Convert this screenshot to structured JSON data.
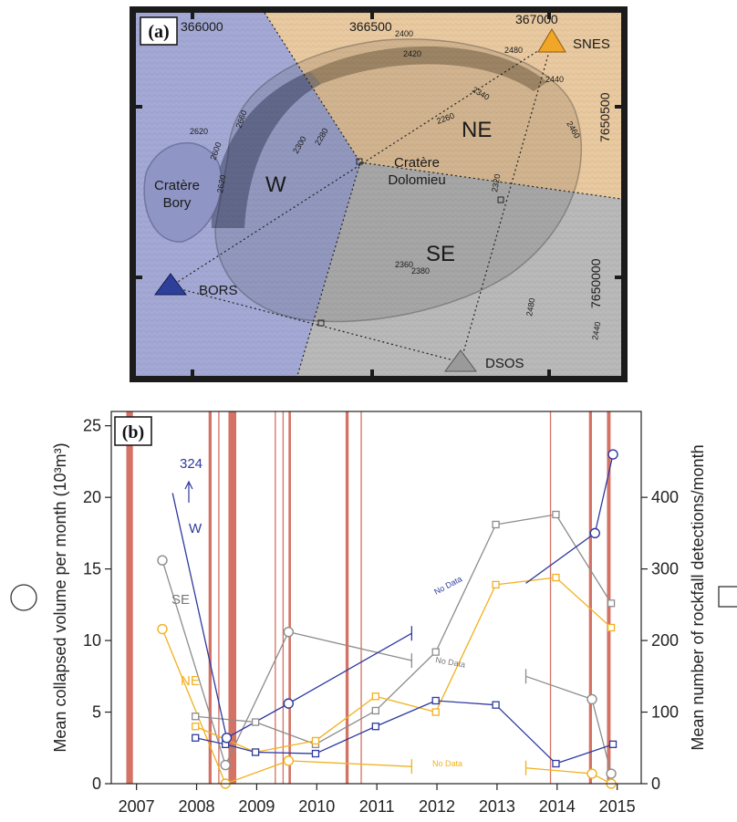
{
  "panel_a": {
    "label": "(a)",
    "coords": {
      "x1": "366000",
      "x2": "366500",
      "x3": "367000",
      "y1": "7650500",
      "y2": "7650000"
    },
    "sectors": {
      "w": "W",
      "ne": "NE",
      "se": "SE"
    },
    "craters": {
      "bory_1": "Cratère",
      "bory_2": "Bory",
      "dolomieu_1": "Cratère",
      "dolomieu_2": "Dolomieu"
    },
    "stations": {
      "snes": "SNES",
      "bors": "BORS",
      "dsos": "DSOS"
    },
    "contours": [
      "2400",
      "2420",
      "2480",
      "2440",
      "2340",
      "2260",
      "2460",
      "2620",
      "2600",
      "2660",
      "2620",
      "2300",
      "2280",
      "2320",
      "2360",
      "2380",
      "2480",
      "2440"
    ],
    "colors": {
      "w": "#a3a9d4",
      "ne": "#e9c9a0",
      "se": "#b9b9b9",
      "snes": "#f2a628",
      "bors": "#2e3f9a",
      "dsos": "#9a9a9a"
    }
  },
  "chart_data": {
    "type": "line",
    "panel_label": "(b)",
    "x_ticks": [
      "2007",
      "2008",
      "2009",
      "2010",
      "2011",
      "2012",
      "2013",
      "2014",
      "2015"
    ],
    "xlim": [
      2006.6,
      2015.42
    ],
    "ylim_left": [
      0,
      26
    ],
    "ylim_right": [
      0,
      520
    ],
    "y_ticks_left": [
      "0",
      "5",
      "10",
      "15",
      "20",
      "25"
    ],
    "y_ticks_right": [
      "0",
      "100",
      "200",
      "300",
      "400"
    ],
    "ylabel_left": "Mean collapsed volume per month (10³m³)",
    "ylabel_right": "Mean number of rockfall detections/month",
    "legend_circle_symbol": "circle",
    "legend_square_symbol": "square",
    "series_labels": {
      "w": "W",
      "se": "SE",
      "ne": "NE",
      "w_outlier": "324"
    },
    "colors": {
      "w": "#2e3a9e",
      "se": "#8c8c8c",
      "ne": "#f2b01e",
      "eruption": "#cc5a4a"
    },
    "no_data_labels": {
      "w": "No Data",
      "se": "No Data",
      "ne": "No Data"
    },
    "eruptions": [
      {
        "x": 2006.85,
        "w": 0.11
      },
      {
        "x": 2008.22,
        "w": 0.05
      },
      {
        "x": 2008.38,
        "w": 0.02
      },
      {
        "x": 2008.55,
        "w": 0.13
      },
      {
        "x": 2009.32,
        "w": 0.02
      },
      {
        "x": 2009.45,
        "w": 0.02
      },
      {
        "x": 2009.55,
        "w": 0.04
      },
      {
        "x": 2010.5,
        "w": 0.05
      },
      {
        "x": 2010.75,
        "w": 0.02
      },
      {
        "x": 2013.9,
        "w": 0.02
      },
      {
        "x": 2014.55,
        "w": 0.05
      },
      {
        "x": 2014.85,
        "w": 0.06
      }
    ],
    "volume_circles": {
      "w": [
        {
          "x": 2008.52,
          "y": 3.2
        },
        {
          "x": 2009.55,
          "y": 5.6
        },
        {
          "x": 2014.65,
          "y": 17.5
        },
        {
          "x": 2014.95,
          "y": 23
        }
      ],
      "se": [
        {
          "x": 2007.45,
          "y": 15.6
        },
        {
          "x": 2008.5,
          "y": 1.3
        },
        {
          "x": 2009.55,
          "y": 10.6
        },
        {
          "x": 2014.6,
          "y": 5.9
        },
        {
          "x": 2014.92,
          "y": 0.7
        }
      ],
      "ne": [
        {
          "x": 2007.45,
          "y": 10.8
        },
        {
          "x": 2008.5,
          "y": 0
        },
        {
          "x": 2009.55,
          "y": 1.6
        },
        {
          "x": 2014.6,
          "y": 0.7
        },
        {
          "x": 2014.92,
          "y": 0
        }
      ]
    },
    "volume_segments": {
      "w": [
        {
          "x0": 2008.52,
          "y0": 3.2,
          "x1": 2009.55,
          "y1": 5.6
        },
        {
          "x0": 2009.55,
          "y0": 5.6,
          "x1": 2011.6,
          "y1": 10.5
        },
        {
          "x0": 2013.5,
          "y0": 14.0,
          "x1": 2014.65,
          "y1": 17.5
        },
        {
          "x0": 2014.65,
          "y0": 17.5,
          "x1": 2014.95,
          "y1": 23
        }
      ],
      "se": [
        {
          "x0": 2007.45,
          "y0": 15.6,
          "x1": 2008.5,
          "y1": 1.3
        },
        {
          "x0": 2008.5,
          "y0": 1.3,
          "x1": 2009.55,
          "y1": 10.6
        },
        {
          "x0": 2009.55,
          "y0": 10.6,
          "x1": 2011.6,
          "y1": 8.6
        },
        {
          "x0": 2013.5,
          "y0": 7.5,
          "x1": 2014.6,
          "y1": 5.9
        },
        {
          "x0": 2014.6,
          "y0": 5.9,
          "x1": 2014.92,
          "y1": 0.7
        }
      ],
      "ne": [
        {
          "x0": 2007.45,
          "y0": 10.8,
          "x1": 2008.5,
          "y1": 0
        },
        {
          "x0": 2008.5,
          "y0": 0,
          "x1": 2009.55,
          "y1": 1.6
        },
        {
          "x0": 2009.55,
          "y0": 1.6,
          "x1": 2011.6,
          "y1": 1.2
        },
        {
          "x0": 2013.5,
          "y0": 1.1,
          "x1": 2014.6,
          "y1": 0.7
        },
        {
          "x0": 2014.6,
          "y0": 0.7,
          "x1": 2014.92,
          "y1": 0
        }
      ]
    },
    "gap_ends": [
      {
        "series": "w",
        "x": 2011.6,
        "y": 10.5
      },
      {
        "series": "se",
        "x": 2011.6,
        "y": 8.6
      },
      {
        "series": "se",
        "x": 2013.5,
        "y": 7.5
      },
      {
        "series": "ne",
        "x": 2011.6,
        "y": 1.2
      },
      {
        "series": "ne",
        "x": 2013.5,
        "y": 1.1
      }
    ],
    "w_outlier_segment": {
      "x0": 2007.62,
      "y0": 20.3,
      "x1": 2008.52,
      "y1": 3.2
    },
    "detection_squares": {
      "w": [
        {
          "x": 2008.0,
          "y": 64
        },
        {
          "x": 2008.5,
          "y": 55
        },
        {
          "x": 2009.0,
          "y": 44
        },
        {
          "x": 2010.0,
          "y": 42
        },
        {
          "x": 2011.0,
          "y": 80
        },
        {
          "x": 2012.0,
          "y": 116
        },
        {
          "x": 2013.0,
          "y": 110
        },
        {
          "x": 2014.0,
          "y": 28
        },
        {
          "x": 2014.95,
          "y": 55
        }
      ],
      "se": [
        {
          "x": 2008.0,
          "y": 94
        },
        {
          "x": 2009.0,
          "y": 86
        },
        {
          "x": 2010.0,
          "y": 55
        },
        {
          "x": 2011.0,
          "y": 102
        },
        {
          "x": 2012.0,
          "y": 184
        },
        {
          "x": 2013.0,
          "y": 362
        },
        {
          "x": 2014.0,
          "y": 376
        },
        {
          "x": 2014.92,
          "y": 252
        }
      ],
      "ne": [
        {
          "x": 2008.0,
          "y": 80
        },
        {
          "x": 2009.0,
          "y": 44
        },
        {
          "x": 2010.0,
          "y": 60
        },
        {
          "x": 2011.0,
          "y": 122
        },
        {
          "x": 2012.0,
          "y": 100
        },
        {
          "x": 2013.0,
          "y": 278
        },
        {
          "x": 2014.0,
          "y": 288
        },
        {
          "x": 2014.92,
          "y": 218
        }
      ]
    }
  }
}
